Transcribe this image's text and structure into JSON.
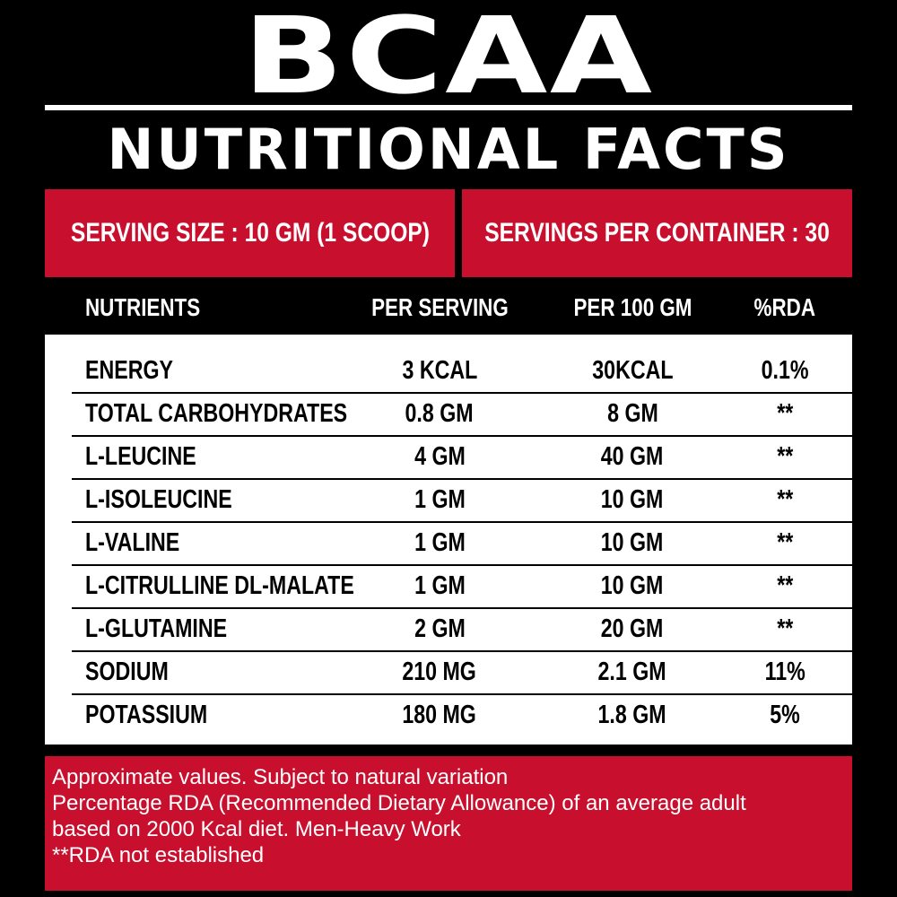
{
  "brand": "BCAA",
  "title": "NUTRITIONAL FACTS",
  "serving": {
    "size": "SERVING SIZE : 10 GM (1 SCOOP)",
    "per_container": "SERVINGS PER CONTAINER : 30"
  },
  "table": {
    "headers": [
      "NUTRIENTS",
      "PER SERVING",
      "PER 100 GM",
      "%RDA"
    ],
    "rows": [
      [
        "ENERGY",
        "3 KCAL",
        "30KCAL",
        "0.1%"
      ],
      [
        "TOTAL CARBOHYDRATES",
        "0.8 GM",
        "8 GM",
        "**"
      ],
      [
        "L-LEUCINE",
        "4 GM",
        "40 GM",
        "**"
      ],
      [
        "L-ISOLEUCINE",
        "1 GM",
        "10 GM",
        "**"
      ],
      [
        "L-VALINE",
        "1 GM",
        "10 GM",
        "**"
      ],
      [
        "L-CITRULLINE DL-MALATE",
        "1 GM",
        "10 GM",
        "**"
      ],
      [
        "L-GLUTAMINE",
        "2 GM",
        "20 GM",
        "**"
      ],
      [
        "SODIUM",
        "210 MG",
        "2.1 GM",
        "11%"
      ],
      [
        "POTASSIUM",
        "180 MG",
        "1.8 GM",
        "5%"
      ]
    ]
  },
  "footer": {
    "lines": [
      "Approximate values. Subject to natural variation",
      "Percentage RDA (Recommended Dietary Allowance) of an average adult",
      "based on 2000 Kcal diet. Men-Heavy Work",
      "**RDA not established"
    ]
  },
  "colors": {
    "background": "#000000",
    "accent_red": "#c8102e",
    "table_bg": "#ffffff",
    "text_light": "#ffffff",
    "text_dark": "#000000"
  }
}
